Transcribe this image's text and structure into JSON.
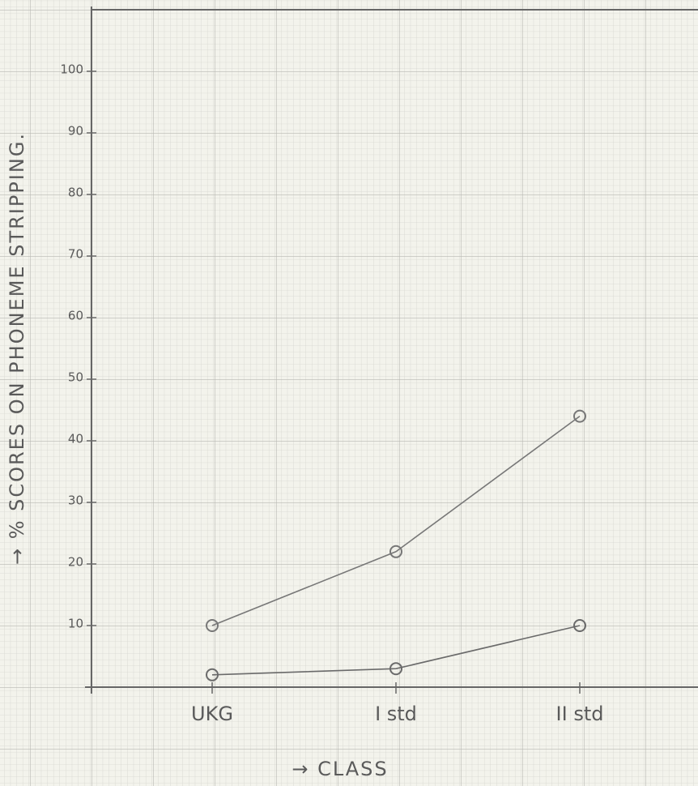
{
  "chart_data": {
    "type": "line",
    "x_label": "→ CLASS",
    "y_label": "→ % SCORES ON PHONEME STRIPPING.",
    "categories": [
      "UKG",
      "I std",
      "II std"
    ],
    "series": [
      {
        "color": "#777777",
        "values": [
          10,
          22,
          44
        ]
      },
      {
        "color": "#6a6a6a",
        "values": [
          2,
          3,
          10
        ]
      }
    ],
    "ylim": [
      0,
      110
    ],
    "yticks": [
      10,
      20,
      30,
      40,
      50,
      60,
      70,
      80,
      90,
      100
    ]
  }
}
